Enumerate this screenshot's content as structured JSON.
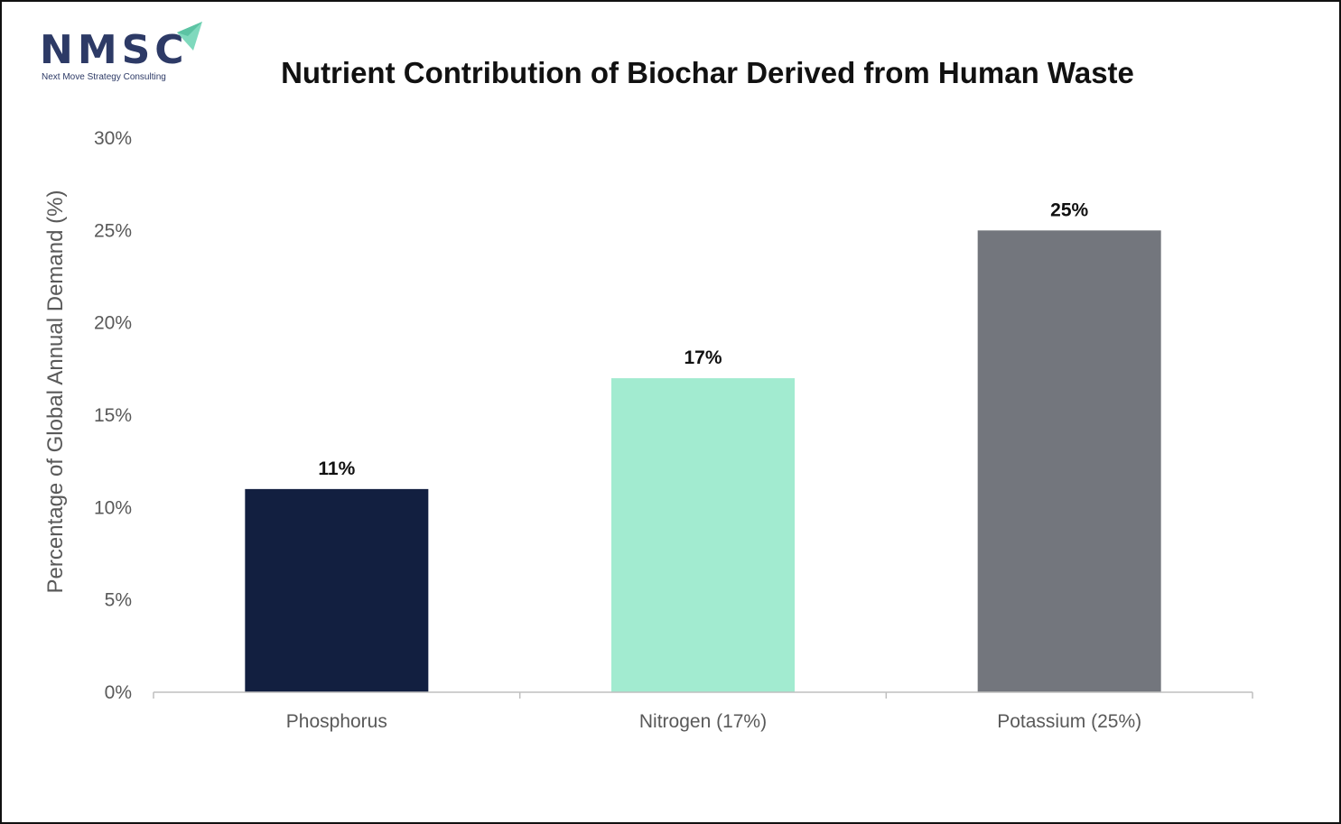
{
  "logo": {
    "letters": "NMSC",
    "tagline": "Next Move Strategy Consulting"
  },
  "colors": {
    "logo_text": "#2d3a66",
    "logo_arrow": "#7fd9bd",
    "axis": "#bfbfbf",
    "text_muted": "#595959"
  },
  "chart_data": {
    "type": "bar",
    "title": "Nutrient Contribution of Biochar Derived from Human Waste",
    "xlabel": "",
    "ylabel": "Percentage of Global Annual Demand (%)",
    "categories": [
      "Phosphorus",
      "Nitrogen (17%)",
      "Potassium (25%)"
    ],
    "values": [
      11,
      17,
      25
    ],
    "data_labels": [
      "11%",
      "17%",
      "25%"
    ],
    "bar_colors": [
      "#121f40",
      "#a2ebd0",
      "#73767d"
    ],
    "ylim": [
      0,
      30
    ],
    "yticks": [
      0,
      5,
      10,
      15,
      20,
      25,
      30
    ],
    "ytick_labels": [
      "0%",
      "5%",
      "10%",
      "15%",
      "20%",
      "25%",
      "30%"
    ],
    "grid": false,
    "legend": "none"
  }
}
